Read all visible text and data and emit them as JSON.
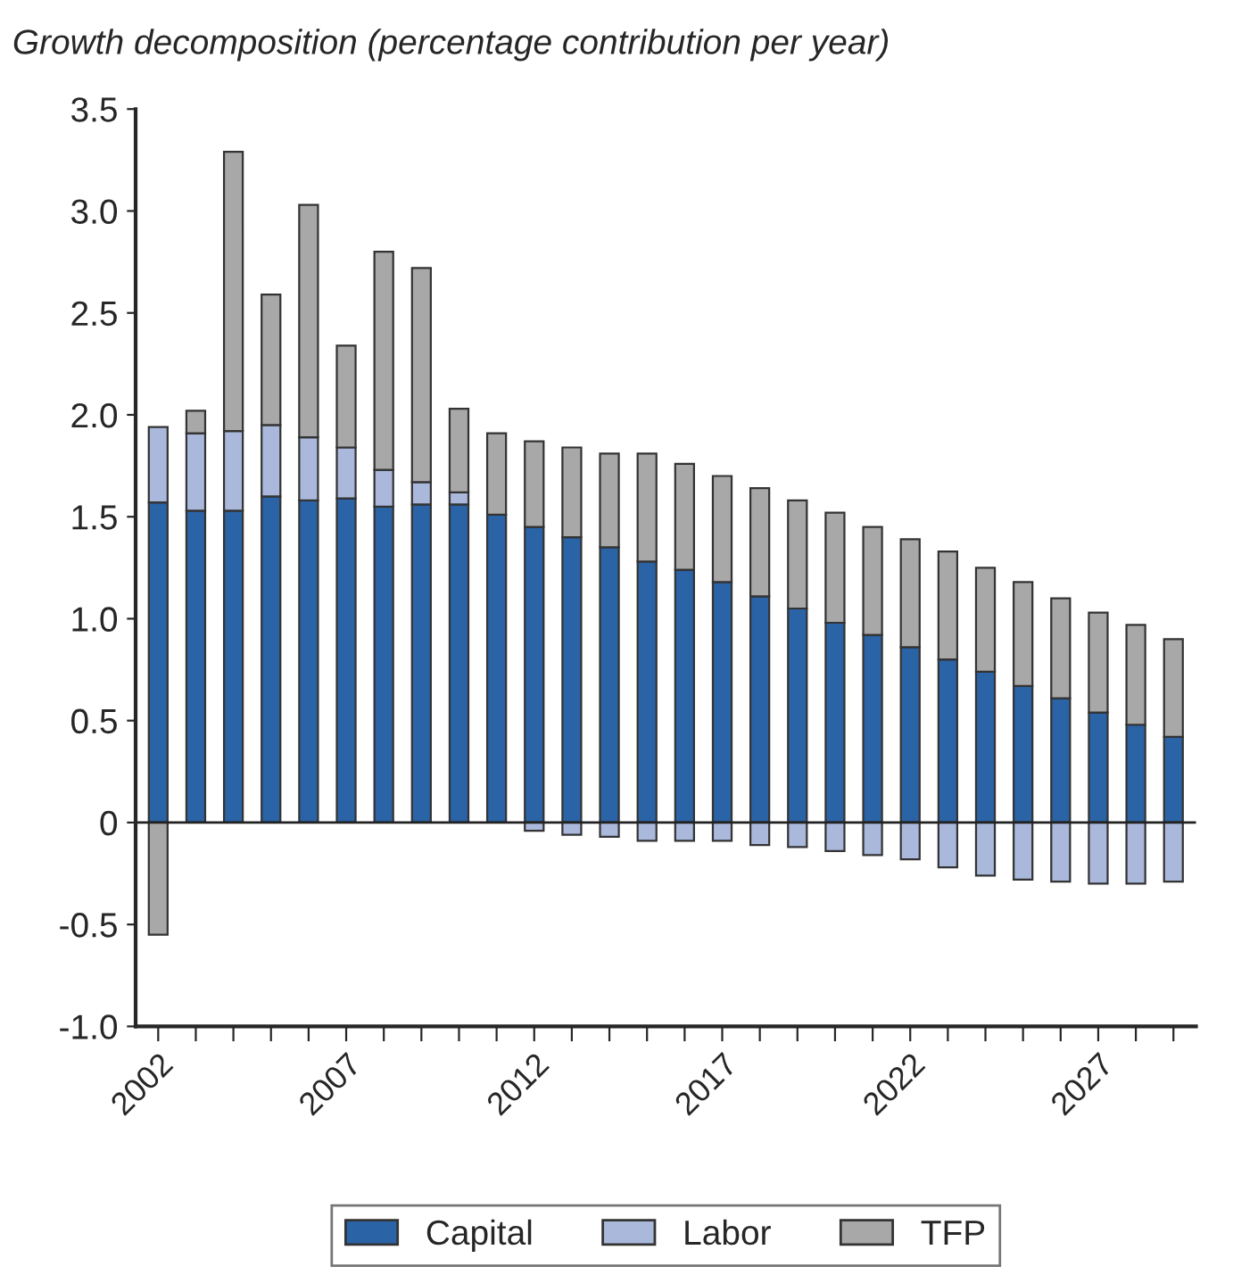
{
  "chart_data": {
    "type": "bar",
    "stacked": true,
    "title": "Growth decomposition (percentage contribution per year)",
    "categories": [
      "2002",
      null,
      null,
      null,
      null,
      "2007",
      null,
      null,
      null,
      null,
      "2012",
      null,
      null,
      null,
      null,
      "2017",
      null,
      null,
      null,
      null,
      "2022",
      null,
      null,
      null,
      null,
      "2027",
      null,
      null
    ],
    "series": [
      {
        "name": "Capital",
        "color": "#2a63a6",
        "values": [
          1.57,
          1.53,
          1.53,
          1.6,
          1.58,
          1.59,
          1.55,
          1.56,
          1.56,
          1.51,
          1.45,
          1.4,
          1.35,
          1.28,
          1.24,
          1.18,
          1.11,
          1.05,
          0.98,
          0.92,
          0.86,
          0.8,
          0.74,
          0.67,
          0.61,
          0.54,
          0.48,
          0.42
        ]
      },
      {
        "name": "Labor",
        "color": "#aab8dc",
        "values": [
          0.37,
          0.38,
          0.39,
          0.35,
          0.31,
          0.25,
          0.18,
          0.11,
          0.06,
          0,
          -0.04,
          -0.06,
          -0.07,
          -0.09,
          -0.09,
          -0.09,
          -0.11,
          -0.12,
          -0.14,
          -0.16,
          -0.18,
          -0.22,
          -0.26,
          -0.28,
          -0.29,
          -0.3,
          -0.3,
          -0.29
        ]
      },
      {
        "name": "TFP",
        "color": "#a8a8a8",
        "values": [
          -0.55,
          0.11,
          1.37,
          0.64,
          1.14,
          0.5,
          1.07,
          1.05,
          0.41,
          0.4,
          0.42,
          0.44,
          0.46,
          0.53,
          0.52,
          0.52,
          0.53,
          0.53,
          0.54,
          0.53,
          0.53,
          0.53,
          0.51,
          0.51,
          0.49,
          0.49,
          0.49,
          0.48
        ]
      }
    ],
    "ylim": [
      -1.0,
      3.5
    ],
    "yticks": [
      {
        "value": -1.0,
        "label": "-1.0"
      },
      {
        "value": -0.5,
        "label": "-0.5"
      },
      0,
      {
        "value": 0.5,
        "label": "0.5"
      },
      {
        "value": 1.0,
        "label": "1.0"
      },
      {
        "value": 1.5,
        "label": "1.5"
      },
      {
        "value": 2.0,
        "label": "2.0"
      },
      {
        "value": 2.5,
        "label": "2.5"
      },
      {
        "value": 3.0,
        "label": "3.0"
      },
      {
        "value": 3.5,
        "label": "3.5"
      }
    ],
    "ref_lines": [
      {
        "axis": "y",
        "value": 0,
        "color": "#222222"
      }
    ],
    "grid": false,
    "legend": "bottom"
  }
}
